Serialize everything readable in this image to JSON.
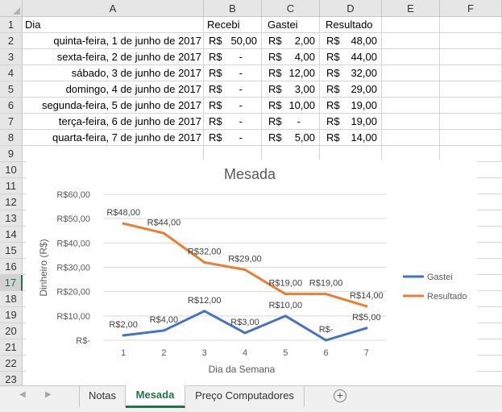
{
  "columns": [
    "A",
    "B",
    "C",
    "D",
    "E",
    "F"
  ],
  "rows": [
    "1",
    "2",
    "3",
    "4",
    "5",
    "6",
    "7",
    "8",
    "9",
    "10",
    "11",
    "12",
    "13",
    "14",
    "15",
    "16",
    "17",
    "18",
    "19",
    "20",
    "21",
    "22",
    "23"
  ],
  "header_row": {
    "dia": "Dia",
    "recebi": "Recebi",
    "gastei": "Gastei",
    "resultado": "Resultado"
  },
  "table": [
    {
      "dia": "quinta-feira, 1 de junho de 2017",
      "recebi": "50,00",
      "gastei": "2,00",
      "resultado": "48,00"
    },
    {
      "dia": "sexta-feira, 2 de junho de 2017",
      "recebi": "-",
      "gastei": "4,00",
      "resultado": "44,00"
    },
    {
      "dia": "sábado, 3 de junho de 2017",
      "recebi": "-",
      "gastei": "12,00",
      "resultado": "32,00"
    },
    {
      "dia": "domingo, 4 de junho de 2017",
      "recebi": "-",
      "gastei": "3,00",
      "resultado": "29,00"
    },
    {
      "dia": "segunda-feira, 5 de junho de 2017",
      "recebi": "-",
      "gastei": "10,00",
      "resultado": "19,00"
    },
    {
      "dia": "terça-feira, 6 de junho de 2017",
      "recebi": "-",
      "gastei": "-",
      "resultado": "19,00"
    },
    {
      "dia": "quarta-feira, 7 de junho de 2017",
      "recebi": "-",
      "gastei": "5,00",
      "resultado": "14,00"
    }
  ],
  "currency": "R$",
  "selected_row": "17",
  "chart_data": {
    "type": "line",
    "title": "Mesada",
    "xlabel": "Dia da Semana",
    "ylabel": "Dinheiro (R$)",
    "categories": [
      "1",
      "2",
      "3",
      "4",
      "5",
      "6",
      "7"
    ],
    "ylim": [
      0,
      60
    ],
    "yticks": [
      0,
      10,
      20,
      30,
      40,
      50,
      60
    ],
    "ytick_labels": [
      "R$-",
      "R$10,00",
      "R$20,00",
      "R$30,00",
      "R$40,00",
      "R$50,00",
      "R$60,00"
    ],
    "grid": true,
    "legend_position": "right",
    "series": [
      {
        "name": "Gastei",
        "color": "#4472C4",
        "values": [
          2,
          4,
          12,
          3,
          10,
          0,
          5
        ],
        "labels": [
          "R$2,00",
          "R$4,00",
          "R$12,00",
          "R$3,00",
          "R$10,00",
          "R$-",
          "R$5,00"
        ]
      },
      {
        "name": "Resultado",
        "color": "#ED7D31",
        "values": [
          48,
          44,
          32,
          29,
          19,
          19,
          14
        ],
        "labels": [
          "R$48,00",
          "R$44,00",
          "R$32,00",
          "R$29,00",
          "R$19,00",
          "R$19,00",
          "R$14,00"
        ]
      }
    ]
  },
  "sheet_tabs": [
    {
      "label": "Notas",
      "active": false
    },
    {
      "label": "Mesada",
      "active": true
    },
    {
      "label": "Preço Computadores",
      "active": false
    }
  ],
  "icons": {
    "prev": "scroll-left-icon",
    "next": "scroll-right-icon",
    "add": "add-sheet-icon"
  }
}
